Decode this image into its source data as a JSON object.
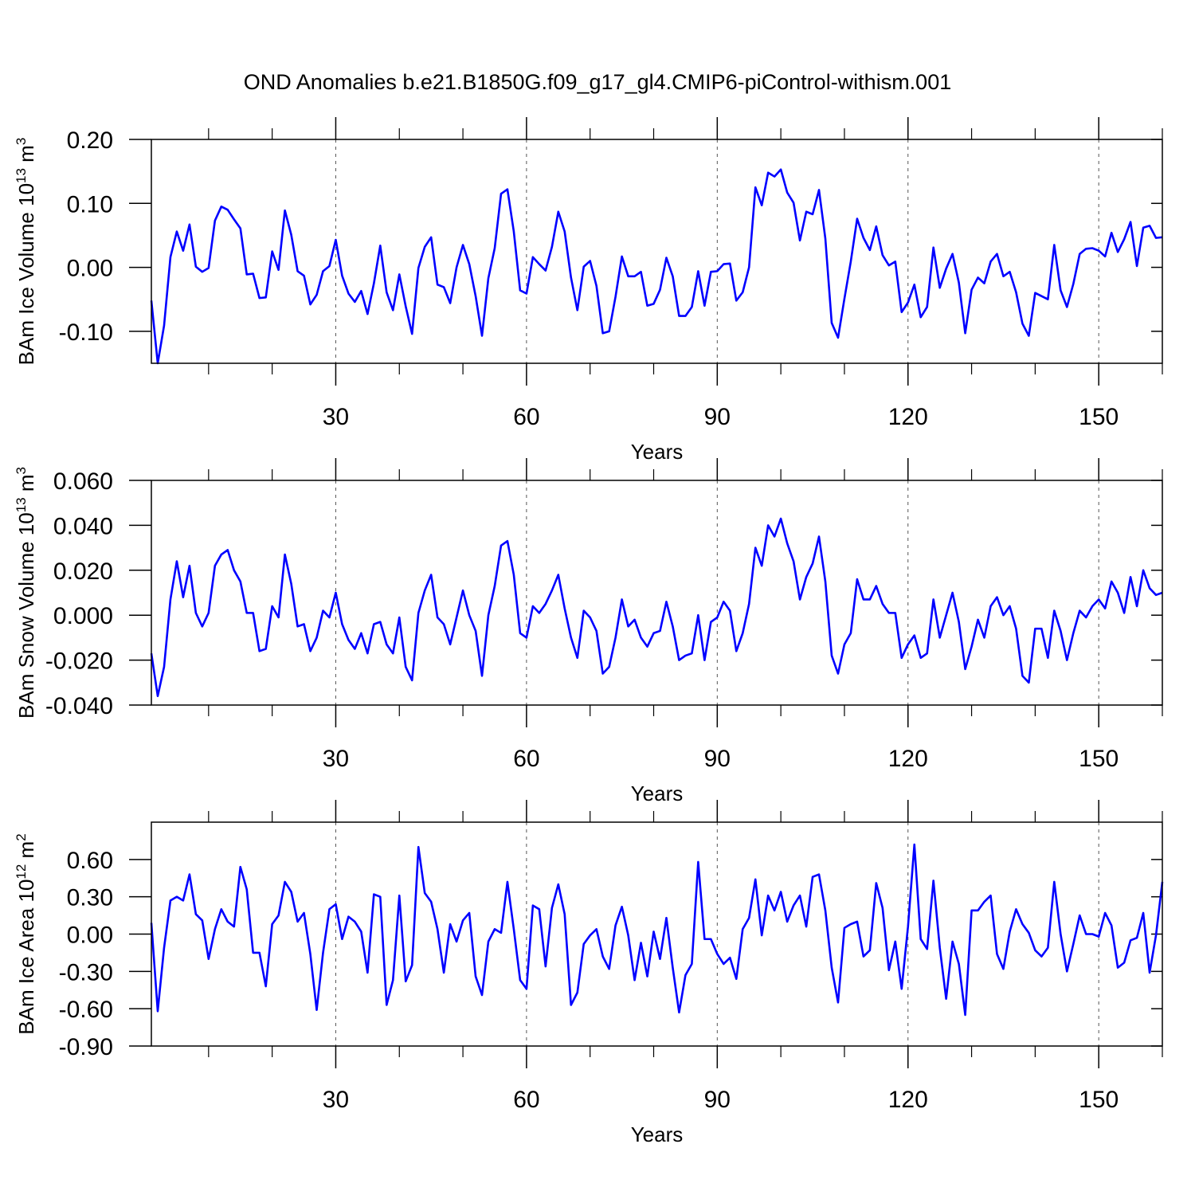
{
  "chart_data": [
    {
      "type": "line",
      "title": "OND Anomalies b.e21.B1850G.f09_g17_gl4.CMIP6-piControl-withism.001",
      "ylabel": {
        "text": "BAm Ice Volume 10",
        "exp": "13",
        "unit": " m",
        "unit_exp": "3"
      },
      "xlabel": "Years",
      "color": "#0000ff",
      "grid": true,
      "xlim": [
        1,
        160
      ],
      "ylim": [
        -0.15,
        0.2
      ],
      "xticks": [
        30,
        60,
        90,
        120,
        150
      ],
      "xminorticks": [
        10,
        20,
        40,
        50,
        70,
        80,
        100,
        110,
        130,
        140,
        160
      ],
      "yticks": [
        {
          "value": -0.1,
          "label": "-0.10"
        },
        {
          "value": 0,
          "label": "0.00"
        },
        {
          "value": 0.1,
          "label": "0.10"
        },
        {
          "value": 0.2,
          "label": "0.20"
        }
      ],
      "x": [
        1,
        2,
        3,
        4,
        5,
        6,
        7,
        8,
        9,
        10,
        11,
        12,
        13,
        14,
        15,
        16,
        17,
        18,
        19,
        20,
        21,
        22,
        23,
        24,
        25,
        26,
        27,
        28,
        29,
        30,
        31,
        32,
        33,
        34,
        35,
        36,
        37,
        38,
        39,
        40,
        41,
        42,
        43,
        44,
        45,
        46,
        47,
        48,
        49,
        50,
        51,
        52,
        53,
        54,
        55,
        56,
        57,
        58,
        59,
        60,
        61,
        62,
        63,
        64,
        65,
        66,
        67,
        68,
        69,
        70,
        71,
        72,
        73,
        74,
        75,
        76,
        77,
        78,
        79,
        80,
        81,
        82,
        83,
        84,
        85,
        86,
        87,
        88,
        89,
        90,
        91,
        92,
        93,
        94,
        95,
        96,
        97,
        98,
        99,
        100,
        101,
        102,
        103,
        104,
        105,
        106,
        107,
        108,
        109,
        110,
        111,
        112,
        113,
        114,
        115,
        116,
        117,
        118,
        119,
        120,
        121,
        122,
        123,
        124,
        125,
        126,
        127,
        128,
        129,
        130,
        131,
        132,
        133,
        134,
        135,
        136,
        137,
        138,
        139,
        140,
        141,
        142,
        143,
        144,
        145,
        146,
        147,
        148,
        149,
        150,
        151,
        152,
        153,
        154,
        155,
        156,
        157,
        158,
        159,
        160
      ],
      "values": [
        -0.052,
        -0.15,
        -0.091,
        0.016,
        0.056,
        0.026,
        0.067,
        0.001,
        -0.007,
        -0.001,
        0.073,
        0.095,
        0.09,
        0.075,
        0.061,
        -0.011,
        -0.01,
        -0.048,
        -0.047,
        0.025,
        -0.004,
        0.089,
        0.051,
        -0.006,
        -0.013,
        -0.058,
        -0.043,
        -0.006,
        0.002,
        0.043,
        -0.013,
        -0.041,
        -0.054,
        -0.037,
        -0.073,
        -0.025,
        0.034,
        -0.039,
        -0.067,
        -0.011,
        -0.061,
        -0.104,
        -0.001,
        0.032,
        0.047,
        -0.027,
        -0.031,
        -0.056,
        0.0,
        0.035,
        0.005,
        -0.045,
        -0.107,
        -0.017,
        0.03,
        0.115,
        0.122,
        0.056,
        -0.036,
        -0.041,
        0.016,
        0.005,
        -0.005,
        0.032,
        0.087,
        0.056,
        -0.016,
        -0.067,
        0.001,
        0.01,
        -0.029,
        -0.103,
        -0.1,
        -0.046,
        0.017,
        -0.014,
        -0.014,
        -0.007,
        -0.06,
        -0.057,
        -0.035,
        0.015,
        -0.014,
        -0.076,
        -0.076,
        -0.062,
        -0.006,
        -0.06,
        -0.007,
        -0.006,
        0.005,
        0.006,
        -0.052,
        -0.039,
        0.0,
        0.125,
        0.097,
        0.148,
        0.142,
        0.153,
        0.117,
        0.101,
        0.042,
        0.087,
        0.083,
        0.121,
        0.045,
        -0.087,
        -0.11,
        -0.049,
        0.009,
        0.076,
        0.046,
        0.027,
        0.064,
        0.019,
        0.003,
        0.009,
        -0.07,
        -0.055,
        -0.027,
        -0.078,
        -0.062,
        0.031,
        -0.032,
        -0.002,
        0.021,
        -0.024,
        -0.103,
        -0.035,
        -0.016,
        -0.025,
        0.009,
        0.021,
        -0.014,
        -0.007,
        -0.039,
        -0.088,
        -0.107,
        -0.04,
        -0.045,
        -0.05,
        0.035,
        -0.036,
        -0.062,
        -0.026,
        0.021,
        0.029,
        0.03,
        0.026,
        0.017,
        0.054,
        0.024,
        0.044,
        0.071,
        0.002,
        0.062,
        0.065,
        0.046,
        0.047
      ]
    },
    {
      "type": "line",
      "ylabel": {
        "text": "BAm Snow Volume 10",
        "exp": "13",
        "unit": " m",
        "unit_exp": "3"
      },
      "xlabel": "Years",
      "color": "#0000ff",
      "grid": true,
      "xlim": [
        1,
        160
      ],
      "ylim": [
        -0.04,
        0.06
      ],
      "xticks": [
        30,
        60,
        90,
        120,
        150
      ],
      "xminorticks": [
        10,
        20,
        40,
        50,
        70,
        80,
        100,
        110,
        130,
        140,
        160
      ],
      "yticks": [
        {
          "value": -0.04,
          "label": "-0.040"
        },
        {
          "value": -0.02,
          "label": "-0.020"
        },
        {
          "value": 0,
          "label": "0.000"
        },
        {
          "value": 0.02,
          "label": "0.020"
        },
        {
          "value": 0.04,
          "label": "0.040"
        },
        {
          "value": 0.06,
          "label": "0.060"
        }
      ],
      "x": [
        1,
        2,
        3,
        4,
        5,
        6,
        7,
        8,
        9,
        10,
        11,
        12,
        13,
        14,
        15,
        16,
        17,
        18,
        19,
        20,
        21,
        22,
        23,
        24,
        25,
        26,
        27,
        28,
        29,
        30,
        31,
        32,
        33,
        34,
        35,
        36,
        37,
        38,
        39,
        40,
        41,
        42,
        43,
        44,
        45,
        46,
        47,
        48,
        49,
        50,
        51,
        52,
        53,
        54,
        55,
        56,
        57,
        58,
        59,
        60,
        61,
        62,
        63,
        64,
        65,
        66,
        67,
        68,
        69,
        70,
        71,
        72,
        73,
        74,
        75,
        76,
        77,
        78,
        79,
        80,
        81,
        82,
        83,
        84,
        85,
        86,
        87,
        88,
        89,
        90,
        91,
        92,
        93,
        94,
        95,
        96,
        97,
        98,
        99,
        100,
        101,
        102,
        103,
        104,
        105,
        106,
        107,
        108,
        109,
        110,
        111,
        112,
        113,
        114,
        115,
        116,
        117,
        118,
        119,
        120,
        121,
        122,
        123,
        124,
        125,
        126,
        127,
        128,
        129,
        130,
        131,
        132,
        133,
        134,
        135,
        136,
        137,
        138,
        139,
        140,
        141,
        142,
        143,
        144,
        145,
        146,
        147,
        148,
        149,
        150,
        151,
        152,
        153,
        154,
        155,
        156,
        157,
        158,
        159,
        160
      ],
      "values": [
        -0.017,
        -0.036,
        -0.023,
        0.007,
        0.024,
        0.008,
        0.022,
        0.001,
        -0.005,
        0.001,
        0.022,
        0.027,
        0.029,
        0.02,
        0.015,
        0.001,
        0.001,
        -0.016,
        -0.015,
        0.004,
        -0.001,
        0.027,
        0.014,
        -0.005,
        -0.004,
        -0.016,
        -0.01,
        0.002,
        -0.001,
        0.01,
        -0.004,
        -0.011,
        -0.015,
        -0.008,
        -0.017,
        -0.004,
        -0.003,
        -0.013,
        -0.017,
        -0.001,
        -0.023,
        -0.029,
        0.001,
        0.011,
        0.018,
        -0.001,
        -0.004,
        -0.013,
        -0.001,
        0.011,
        0.0,
        -0.007,
        -0.027,
        0.0,
        0.013,
        0.031,
        0.033,
        0.018,
        -0.008,
        -0.01,
        0.004,
        0.001,
        0.005,
        0.011,
        0.018,
        0.003,
        -0.01,
        -0.019,
        0.002,
        -0.001,
        -0.007,
        -0.026,
        -0.023,
        -0.01,
        0.007,
        -0.005,
        -0.002,
        -0.01,
        -0.014,
        -0.008,
        -0.007,
        0.006,
        -0.005,
        -0.02,
        -0.018,
        -0.017,
        0.0,
        -0.02,
        -0.003,
        -0.001,
        0.006,
        0.002,
        -0.016,
        -0.008,
        0.005,
        0.03,
        0.022,
        0.04,
        0.035,
        0.043,
        0.032,
        0.024,
        0.007,
        0.017,
        0.023,
        0.035,
        0.015,
        -0.018,
        -0.026,
        -0.013,
        -0.008,
        0.016,
        0.007,
        0.007,
        0.013,
        0.005,
        0.001,
        0.001,
        -0.019,
        -0.013,
        -0.009,
        -0.019,
        -0.017,
        0.007,
        -0.01,
        0.0,
        0.01,
        -0.003,
        -0.024,
        -0.014,
        -0.002,
        -0.01,
        0.004,
        0.008,
        0.0,
        0.004,
        -0.006,
        -0.027,
        -0.03,
        -0.006,
        -0.006,
        -0.019,
        0.002,
        -0.007,
        -0.02,
        -0.008,
        0.002,
        -0.001,
        0.004,
        0.007,
        0.003,
        0.015,
        0.01,
        0.001,
        0.017,
        0.004,
        0.02,
        0.012,
        0.009,
        0.01
      ]
    },
    {
      "type": "line",
      "ylabel": {
        "text": "BAm Ice Area 10",
        "exp": "12",
        "unit": " m",
        "unit_exp": "2"
      },
      "xlabel": "Years",
      "color": "#0000ff",
      "grid": true,
      "xlim": [
        1,
        160
      ],
      "ylim": [
        -0.9,
        0.9
      ],
      "xticks": [
        30,
        60,
        90,
        120,
        150
      ],
      "xminorticks": [
        10,
        20,
        40,
        50,
        70,
        80,
        100,
        110,
        130,
        140,
        160
      ],
      "yticks": [
        {
          "value": -0.9,
          "label": "-0.90"
        },
        {
          "value": -0.6,
          "label": "-0.60"
        },
        {
          "value": -0.3,
          "label": "-0.30"
        },
        {
          "value": 0,
          "label": "0.00"
        },
        {
          "value": 0.3,
          "label": "0.30"
        },
        {
          "value": 0.6,
          "label": "0.60"
        }
      ],
      "x": [
        1,
        2,
        3,
        4,
        5,
        6,
        7,
        8,
        9,
        10,
        11,
        12,
        13,
        14,
        15,
        16,
        17,
        18,
        19,
        20,
        21,
        22,
        23,
        24,
        25,
        26,
        27,
        28,
        29,
        30,
        31,
        32,
        33,
        34,
        35,
        36,
        37,
        38,
        39,
        40,
        41,
        42,
        43,
        44,
        45,
        46,
        47,
        48,
        49,
        50,
        51,
        52,
        53,
        54,
        55,
        56,
        57,
        58,
        59,
        60,
        61,
        62,
        63,
        64,
        65,
        66,
        67,
        68,
        69,
        70,
        71,
        72,
        73,
        74,
        75,
        76,
        77,
        78,
        79,
        80,
        81,
        82,
        83,
        84,
        85,
        86,
        87,
        88,
        89,
        90,
        91,
        92,
        93,
        94,
        95,
        96,
        97,
        98,
        99,
        100,
        101,
        102,
        103,
        104,
        105,
        106,
        107,
        108,
        109,
        110,
        111,
        112,
        113,
        114,
        115,
        116,
        117,
        118,
        119,
        120,
        121,
        122,
        123,
        124,
        125,
        126,
        127,
        128,
        129,
        130,
        131,
        132,
        133,
        134,
        135,
        136,
        137,
        138,
        139,
        140,
        141,
        142,
        143,
        144,
        145,
        146,
        147,
        148,
        149,
        150,
        151,
        152,
        153,
        154,
        155,
        156,
        157,
        158,
        159,
        160
      ],
      "values": [
        0.09,
        -0.62,
        -0.11,
        0.27,
        0.3,
        0.27,
        0.48,
        0.16,
        0.11,
        -0.2,
        0.04,
        0.2,
        0.1,
        0.06,
        0.54,
        0.36,
        -0.15,
        -0.15,
        -0.42,
        0.08,
        0.15,
        0.42,
        0.34,
        0.1,
        0.17,
        -0.16,
        -0.61,
        -0.15,
        0.2,
        0.24,
        -0.04,
        0.14,
        0.1,
        0.02,
        -0.31,
        0.32,
        0.3,
        -0.57,
        -0.37,
        0.31,
        -0.38,
        -0.25,
        0.7,
        0.33,
        0.26,
        0.04,
        -0.31,
        0.08,
        -0.06,
        0.11,
        0.17,
        -0.34,
        -0.49,
        -0.06,
        0.04,
        0.01,
        0.42,
        0.04,
        -0.37,
        -0.44,
        0.23,
        0.2,
        -0.26,
        0.21,
        0.4,
        0.16,
        -0.57,
        -0.47,
        -0.08,
        -0.01,
        0.04,
        -0.18,
        -0.28,
        0.07,
        0.22,
        -0.01,
        -0.37,
        -0.07,
        -0.34,
        0.02,
        -0.2,
        0.13,
        -0.27,
        -0.63,
        -0.33,
        -0.24,
        0.58,
        -0.04,
        -0.04,
        -0.16,
        -0.24,
        -0.19,
        -0.36,
        0.04,
        0.13,
        0.44,
        -0.01,
        0.31,
        0.19,
        0.34,
        0.1,
        0.23,
        0.31,
        0.06,
        0.46,
        0.48,
        0.19,
        -0.27,
        -0.55,
        0.05,
        0.08,
        0.1,
        -0.18,
        -0.13,
        0.41,
        0.21,
        -0.29,
        -0.06,
        -0.44,
        0.06,
        0.72,
        -0.04,
        -0.12,
        0.43,
        -0.11,
        -0.52,
        -0.06,
        -0.24,
        -0.65,
        0.19,
        0.19,
        0.26,
        0.31,
        -0.16,
        -0.28,
        0.02,
        0.2,
        0.08,
        0.01,
        -0.13,
        -0.18,
        -0.11,
        0.42,
        0.0,
        -0.3,
        -0.08,
        0.15,
        0.0,
        0.0,
        -0.02,
        0.17,
        0.07,
        -0.27,
        -0.23,
        -0.05,
        -0.03,
        0.17,
        -0.31,
        -0.01,
        0.42
      ]
    }
  ]
}
